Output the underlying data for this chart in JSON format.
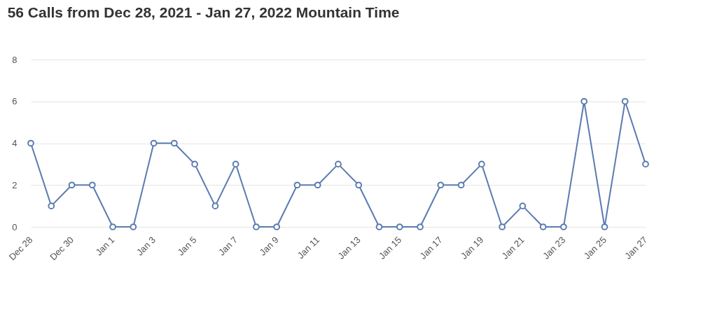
{
  "chart_data": {
    "type": "line",
    "title": "56 Calls from Dec 28, 2021 - Jan 27, 2022 Mountain Time",
    "categories": [
      "Dec 28",
      null,
      "Dec 30",
      null,
      "Jan 1",
      null,
      "Jan 3",
      null,
      "Jan 5",
      null,
      "Jan 7",
      null,
      "Jan 9",
      null,
      "Jan 11",
      null,
      "Jan 13",
      null,
      "Jan 15",
      null,
      "Jan 17",
      null,
      "Jan 19",
      null,
      "Jan 21",
      null,
      "Jan 23",
      null,
      "Jan 25",
      null,
      "Jan 27"
    ],
    "series": [
      {
        "color": "#5b7bb0",
        "values": [
          4,
          1,
          2,
          2,
          0,
          0,
          4,
          4,
          3,
          1,
          3,
          0,
          0,
          2,
          2,
          3,
          2,
          0,
          0,
          0,
          2,
          2,
          3,
          0,
          1,
          0,
          0,
          6,
          0,
          6,
          3
        ]
      }
    ],
    "ylim": [
      0,
      8
    ],
    "yticks": [
      0,
      2,
      4,
      6,
      8
    ],
    "grid": "y",
    "marker": "circle",
    "line_style": "solid"
  }
}
